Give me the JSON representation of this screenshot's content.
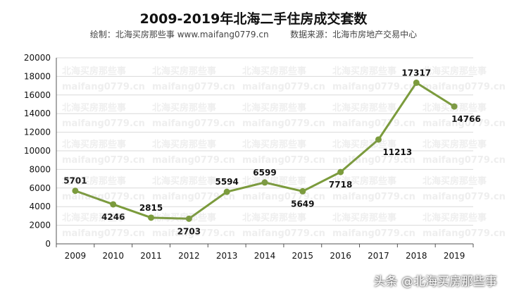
{
  "title": "2009-2019年北海二手住房成交套数",
  "subtitle_left": "绘制：北海买房那些事 www.maifang0779.cn",
  "subtitle_right": "数据来源：北海市房地产交易中心",
  "watermark_texts": [
    "北海买房那些事",
    "maifang0779.cn"
  ],
  "footer_watermark": "头条 @北海买房那些事",
  "colors": {
    "line": "#7b9b3c",
    "grid": "#d9d9d9",
    "axis": "#555555",
    "label": "#111111"
  },
  "chart_data": {
    "type": "line",
    "title": "2009-2019年北海二手住房成交套数",
    "xlabel": "",
    "ylabel": "",
    "categories": [
      "2009",
      "2010",
      "2011",
      "2012",
      "2013",
      "2014",
      "2015",
      "2016",
      "2017",
      "2018",
      "2019"
    ],
    "values": [
      5701,
      4246,
      2815,
      2703,
      5594,
      6599,
      5649,
      7718,
      11213,
      17317,
      14766
    ],
    "ylim": [
      0,
      20000
    ],
    "yticks": [
      0,
      2000,
      4000,
      6000,
      8000,
      10000,
      12000,
      14000,
      16000,
      18000,
      20000
    ],
    "grid": true,
    "legend": "none",
    "data_labels": true
  }
}
